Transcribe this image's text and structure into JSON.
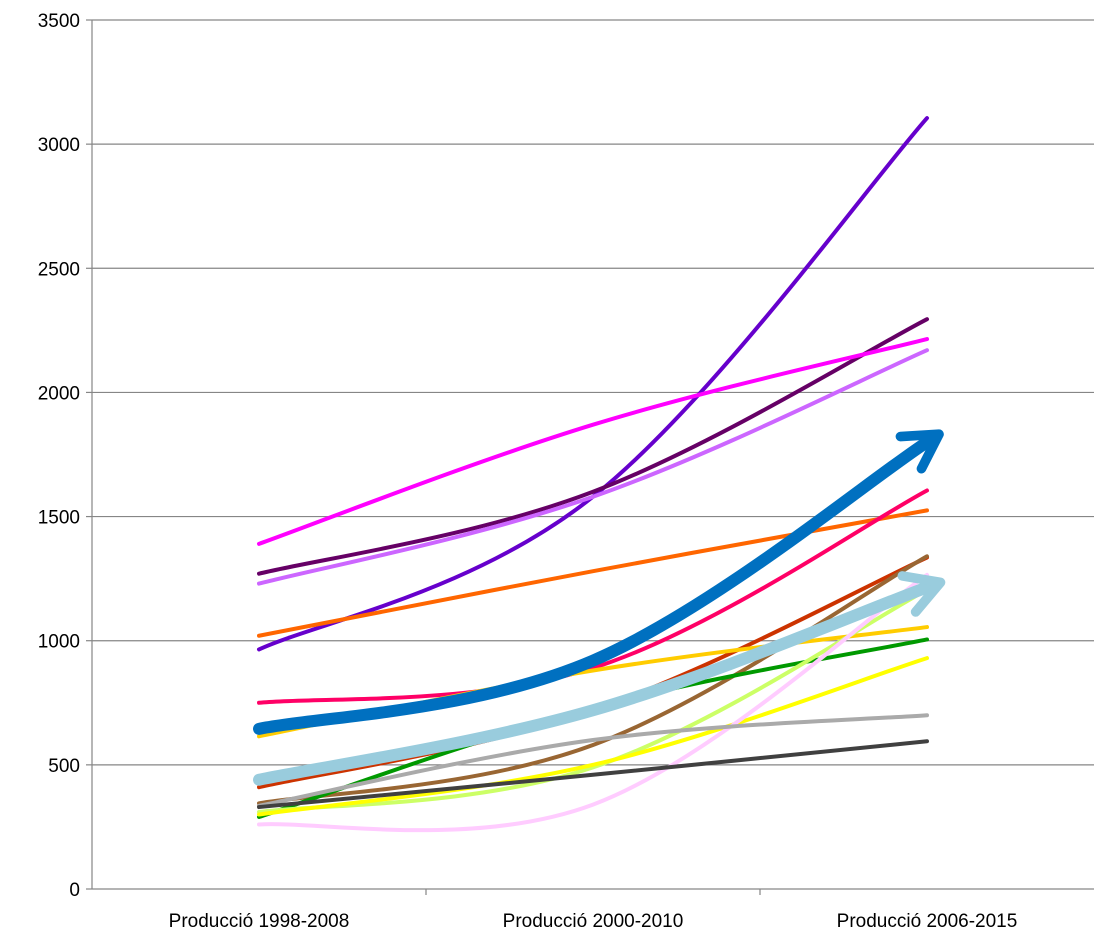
{
  "chart_data": {
    "type": "line",
    "title": "",
    "xlabel": "",
    "ylabel": "",
    "categories": [
      "Producció 1998-2008",
      "Producció 2000-2010",
      "Producció 2006-2015"
    ],
    "ylim": [
      0,
      3500
    ],
    "yticks": [
      "0",
      "500",
      "1000",
      "1500",
      "2000",
      "2500",
      "3000",
      "3500"
    ],
    "grid": true,
    "legend": "none",
    "smooth": true,
    "series": [
      {
        "color": "#6600CC",
        "width": "normal",
        "values": [
          965,
          1580,
          3105
        ]
      },
      {
        "color": "#660066",
        "width": "normal",
        "values": [
          1270,
          1600,
          2295
        ]
      },
      {
        "color": "#CC66FF",
        "width": "normal",
        "values": [
          1230,
          1580,
          2170
        ]
      },
      {
        "color": "#FF00FF",
        "width": "normal",
        "values": [
          1390,
          1870,
          2215
        ]
      },
      {
        "color": "#FF6600",
        "width": "normal",
        "values": [
          1020,
          1280,
          1525
        ]
      },
      {
        "color": "#FF0066",
        "width": "normal",
        "values": [
          750,
          890,
          1605
        ]
      },
      {
        "color": "#CC3300",
        "width": "normal",
        "values": [
          410,
          720,
          1335
        ]
      },
      {
        "color": "#996633",
        "width": "normal",
        "values": [
          345,
          580,
          1340
        ]
      },
      {
        "color": "#FFCC00",
        "width": "normal",
        "values": [
          615,
          880,
          1055
        ]
      },
      {
        "color": "#009900",
        "width": "normal",
        "values": [
          290,
          730,
          1005
        ]
      },
      {
        "color": "#CCFF66",
        "width": "normal",
        "values": [
          310,
          490,
          1205
        ]
      },
      {
        "color": "#FFFF00",
        "width": "normal",
        "values": [
          300,
          500,
          930
        ]
      },
      {
        "color": "#FFCCFF",
        "width": "normal",
        "values": [
          260,
          340,
          1265
        ]
      },
      {
        "color": "#AAAAAA",
        "width": "normal",
        "values": [
          335,
          600,
          700
        ]
      },
      {
        "color": "#404040",
        "width": "normal",
        "values": [
          330,
          460,
          595
        ]
      },
      {
        "color": "#99CCDD",
        "width": "thick",
        "values": [
          440,
          720,
          1215
        ],
        "arrow": true
      },
      {
        "color": "#0070C0",
        "width": "thick",
        "values": [
          645,
          920,
          1800
        ],
        "arrow": true
      }
    ]
  }
}
